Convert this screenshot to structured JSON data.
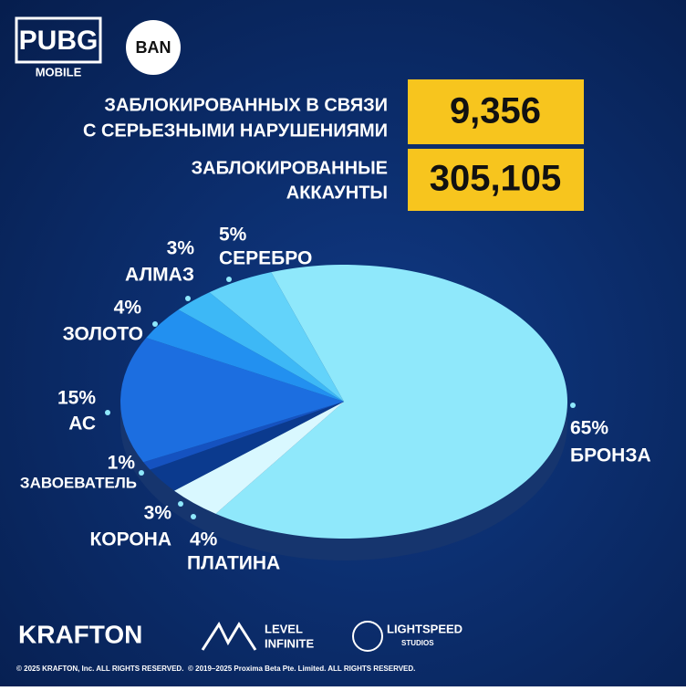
{
  "header": {
    "logo": "PUBG",
    "logo_sub": "MOBILE",
    "badge": "BAN"
  },
  "stats": [
    {
      "lines": [
        "ЗАБЛОКИРОВАННЫХ В СВЯЗИ",
        "С СЕРЬЕЗНЫМИ НАРУШЕНИЯМИ"
      ],
      "number": "9,356"
    },
    {
      "lines": [
        "ЗАБЛОКИРОВАННЫЕ",
        "АККАУНТЫ"
      ],
      "number": "305,105"
    }
  ],
  "chart_data": {
    "type": "pie",
    "categories": [
      "БРОНЗА",
      "ПЛАТИНА",
      "КОРОНА",
      "ЗАВОЕВАТЕЛЬ",
      "АС",
      "ЗОЛОТО",
      "АЛМАЗ",
      "СЕРЕБРО"
    ],
    "values": [
      65,
      4,
      3,
      1,
      15,
      4,
      3,
      5
    ],
    "value_labels": [
      "65%",
      "4%",
      "3%",
      "1%",
      "15%",
      "4%",
      "3%",
      "5%"
    ],
    "colors": [
      "#8fe8fb",
      "#d9f8ff",
      "#0b3a8e",
      "#1552c0",
      "#1c6ee0",
      "#2290f0",
      "#3db8f6",
      "#63d3fa"
    ]
  },
  "footer": {
    "brands": [
      "KRAFTON",
      "LEVEL",
      "INFINITE",
      "LIGHTSPEED",
      "STUDIOS"
    ],
    "copyrights": [
      "© 2025 KRAFTON, Inc. ALL RIGHTS RESERVED.",
      "© 2019–2025 Proxima Beta Pte. Limited. ALL RIGHTS RESERVED."
    ]
  }
}
